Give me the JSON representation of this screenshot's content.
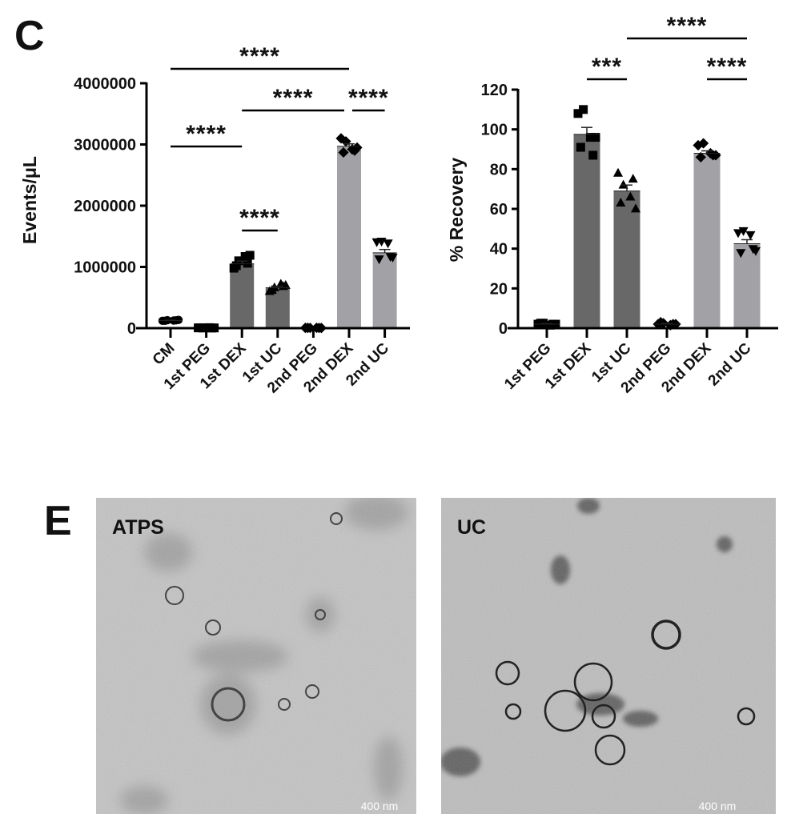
{
  "panels": {
    "c_label": "C",
    "e_label": "E"
  },
  "colors": {
    "dark_bar": "#686868",
    "light_bar": "#a2a2a6",
    "marker": "#000000"
  },
  "chart_data": [
    {
      "type": "bar",
      "title": "",
      "xlabel": "",
      "ylabel": "Events/μL",
      "ylim": [
        0,
        4000000
      ],
      "yticks": [
        "0",
        "1000000",
        "2000000",
        "3000000",
        "4000000"
      ],
      "grid": false,
      "categories": [
        "CM",
        "1st PEG",
        "1st DEX",
        "1st UC",
        "2nd PEG",
        "2nd DEX",
        "2nd UC"
      ],
      "values": [
        125000,
        5000,
        1050000,
        660000,
        5000,
        2970000,
        1230000
      ],
      "errors": [
        5000,
        2000,
        45000,
        25000,
        2000,
        40000,
        55000
      ],
      "bar_shades": [
        "none",
        "none",
        "dark",
        "dark",
        "none",
        "light",
        "light"
      ],
      "markers": [
        "circle",
        "square",
        "square",
        "triangle",
        "diamond",
        "diamond",
        "triangle-down"
      ],
      "points": [
        [
          120000,
          130000,
          125000,
          135000,
          120000,
          128000
        ],
        [
          5000,
          3000,
          8000,
          4000,
          6000,
          2000
        ],
        [
          980000,
          1100000,
          1170000,
          1190000,
          1020000,
          1060000
        ],
        [
          600000,
          660000,
          720000,
          700000,
          620000,
          680000
        ],
        [
          5000,
          4000,
          6000,
          3000,
          5000,
          4000
        ],
        [
          3100000,
          3050000,
          2920000,
          2950000,
          2870000,
          2900000
        ],
        [
          1410000,
          1420000,
          1390000,
          1160000,
          1130000,
          1170000
        ]
      ],
      "significance": [
        {
          "from": "CM",
          "to": "2nd DEX",
          "label": "****"
        },
        {
          "from": "1st DEX",
          "to": "2nd DEX",
          "label": "****"
        },
        {
          "from": "2nd DEX",
          "to": "2nd UC",
          "label": "****"
        },
        {
          "from": "CM",
          "to": "1st DEX",
          "label": "****"
        },
        {
          "from": "1st DEX",
          "to": "1st UC",
          "label": "****"
        }
      ]
    },
    {
      "type": "bar",
      "title": "",
      "xlabel": "",
      "ylabel": "% Recovery",
      "ylim": [
        0,
        120
      ],
      "yticks": [
        "0",
        "20",
        "40",
        "60",
        "80",
        "100",
        "120"
      ],
      "grid": false,
      "categories": [
        "1st PEG",
        "1st DEX",
        "1st UC",
        "2nd PEG",
        "2nd DEX",
        "2nd UC"
      ],
      "values": [
        2,
        97.5,
        69,
        2,
        88,
        42.5
      ],
      "errors": [
        0.3,
        3.5,
        3,
        0.3,
        1.2,
        2
      ],
      "bar_shades": [
        "none",
        "dark",
        "dark",
        "none",
        "light",
        "light"
      ],
      "markers": [
        "square",
        "square",
        "triangle",
        "diamond",
        "diamond",
        "triangle-down"
      ],
      "points": [
        [
          2,
          2.5,
          1.5,
          2,
          2.5,
          2
        ],
        [
          108,
          110,
          96,
          96,
          91,
          87
        ],
        [
          78,
          72,
          66,
          60,
          63,
          75
        ],
        [
          2,
          2.5,
          1.5,
          2,
          3,
          2
        ],
        [
          92,
          93,
          88,
          87,
          86,
          87
        ],
        [
          48,
          49,
          47,
          39,
          38,
          40
        ]
      ],
      "significance": [
        {
          "from": "1st UC",
          "to": "2nd UC",
          "label": "****"
        },
        {
          "from": "1st DEX",
          "to": "1st UC",
          "label": "***"
        },
        {
          "from": "2nd DEX",
          "to": "2nd UC",
          "label": "****"
        }
      ]
    }
  ],
  "tem": {
    "left": {
      "label": "ATPS",
      "scale": "400 nm"
    },
    "right": {
      "label": "UC",
      "scale": "400 nm"
    }
  }
}
